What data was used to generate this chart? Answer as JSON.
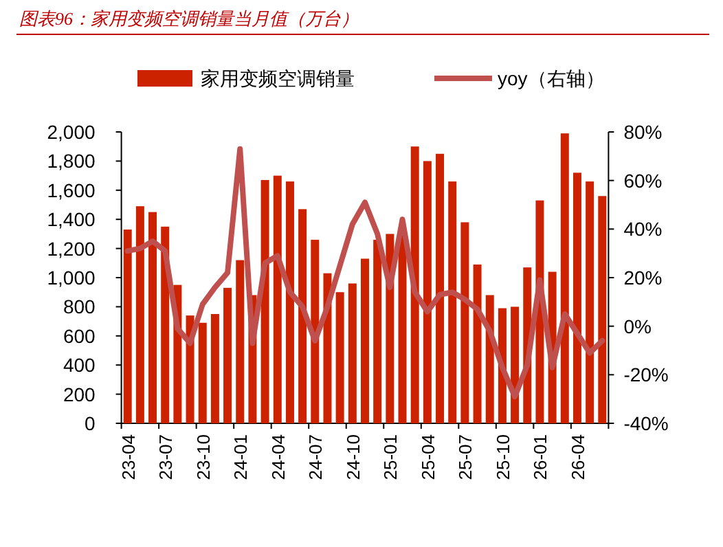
{
  "chart_data": {
    "type": "bar",
    "title": "图表96：家用变频空调销量当月值（万台）",
    "categories": [
      "23-04",
      null,
      null,
      "23-07",
      null,
      null,
      "23-10",
      null,
      null,
      "24-01",
      null,
      null,
      "24-04",
      null,
      null,
      "24-07",
      null,
      null,
      "24-10",
      null,
      null,
      "25-01",
      null,
      null,
      "25-04",
      null,
      null,
      "25-07",
      null,
      null,
      "25-10",
      null,
      null,
      "26-01",
      null,
      null,
      "26-04",
      null,
      null
    ],
    "series": [
      {
        "name": "家用变频空调销量",
        "color": "#cc2200",
        "values": [
          1330,
          1490,
          1450,
          1350,
          950,
          740,
          690,
          750,
          930,
          1120,
          880,
          1670,
          1700,
          1660,
          1470,
          1260,
          1030,
          900,
          960,
          1130,
          1260,
          1300,
          1290,
          1900,
          1800,
          1850,
          1660,
          1380,
          1090,
          880,
          790,
          800,
          1070,
          1530,
          1040,
          1990,
          1720,
          1660,
          1560
        ]
      },
      {
        "name": "yoy（右轴）",
        "type": "line",
        "axis": "y2",
        "color": "#c0504d",
        "values": [
          31,
          32,
          35,
          31,
          -1,
          -7,
          9,
          16,
          22,
          73,
          -7,
          26,
          29,
          14,
          8,
          -6,
          8,
          25,
          42,
          51,
          38,
          16,
          44,
          14,
          6,
          13,
          14,
          11,
          7,
          -2,
          -17,
          -29,
          -16,
          19,
          -17,
          5,
          -3,
          -11,
          -6
        ]
      }
    ],
    "ylim": [
      0,
      2000
    ],
    "yticks": [
      0,
      200,
      400,
      600,
      800,
      {
        "value": 1000,
        "label": "1,000"
      },
      {
        "value": 1200,
        "label": "1,200"
      },
      {
        "value": 1400,
        "label": "1,400"
      },
      {
        "value": 1600,
        "label": "1,600"
      },
      {
        "value": 1800,
        "label": "1,800"
      },
      {
        "value": 2000,
        "label": "2,000"
      }
    ],
    "y2lim": [
      -40,
      80
    ],
    "y2ticks": [
      {
        "value": -40,
        "label": "-40%"
      },
      {
        "value": -20,
        "label": "-20%"
      },
      {
        "value": 0,
        "label": "0%"
      },
      {
        "value": 20,
        "label": "20%"
      },
      {
        "value": 40,
        "label": "40%"
      },
      {
        "value": 60,
        "label": "60%"
      },
      {
        "value": 80,
        "label": "80%"
      }
    ],
    "legend": "top"
  }
}
